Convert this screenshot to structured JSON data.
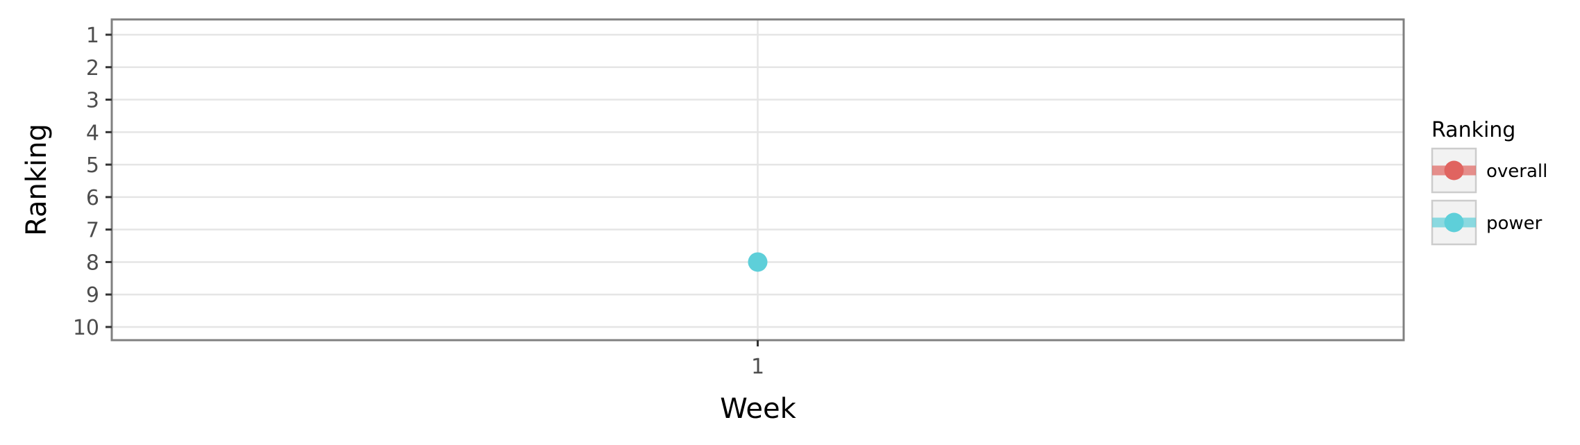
{
  "chart_data": {
    "type": "line",
    "title": "",
    "xlabel": "Week",
    "ylabel": "Ranking",
    "x": [
      1
    ],
    "x_ticks": [
      "1"
    ],
    "y_ticks": [
      "1",
      "2",
      "3",
      "4",
      "5",
      "6",
      "7",
      "8",
      "9",
      "10"
    ],
    "ylim": [
      1,
      10
    ],
    "y_reversed": true,
    "grid": true,
    "legend": {
      "title": "Ranking",
      "placement": "right",
      "entries": [
        {
          "label": "overall",
          "color": "#e06460"
        },
        {
          "label": "power",
          "color": "#5ecfd9"
        }
      ]
    },
    "series": [
      {
        "name": "overall",
        "color": "#e06460",
        "values": [
          null
        ]
      },
      {
        "name": "power",
        "color": "#5ecfd9",
        "values": [
          8
        ]
      }
    ]
  }
}
